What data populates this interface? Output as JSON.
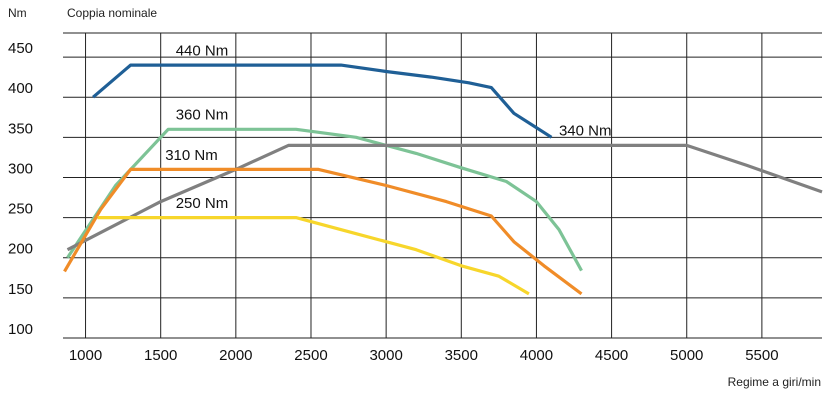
{
  "chart_data": {
    "type": "line",
    "unit_label": "Nm",
    "title": "Coppia nominale",
    "xlabel": "Regime a giri/min",
    "ylabel": "Nm",
    "xlim": [
      850,
      5900
    ],
    "ylim": [
      100,
      480
    ],
    "x_ticks": [
      1000,
      1500,
      2000,
      2500,
      3000,
      3500,
      4000,
      4500,
      5000,
      5500
    ],
    "y_ticks": [
      100,
      150,
      200,
      250,
      300,
      350,
      400,
      450
    ],
    "grid": true,
    "series": [
      {
        "name": "440 Nm",
        "color": "#1f5f96",
        "label_pos": [
          1600,
          452
        ],
        "points": [
          [
            1050,
            400
          ],
          [
            1300,
            440
          ],
          [
            2700,
            440
          ],
          [
            3000,
            432
          ],
          [
            3300,
            425
          ],
          [
            3550,
            418
          ],
          [
            3700,
            412
          ],
          [
            3850,
            380
          ],
          [
            4100,
            350
          ]
        ]
      },
      {
        "name": "360 Nm",
        "color": "#7dc396",
        "label_pos": [
          1600,
          372
        ],
        "points": [
          [
            880,
            200
          ],
          [
            1200,
            290
          ],
          [
            1550,
            360
          ],
          [
            2400,
            360
          ],
          [
            2800,
            350
          ],
          [
            3200,
            330
          ],
          [
            3500,
            312
          ],
          [
            3800,
            295
          ],
          [
            4000,
            270
          ],
          [
            4150,
            235
          ],
          [
            4300,
            184
          ]
        ]
      },
      {
        "name": "340 Nm",
        "color": "#808080",
        "label_pos": [
          4150,
          352
        ],
        "points": [
          [
            880,
            210
          ],
          [
            1500,
            270
          ],
          [
            2000,
            310
          ],
          [
            2350,
            340
          ],
          [
            5000,
            340
          ],
          [
            5400,
            315
          ],
          [
            5900,
            282
          ]
        ]
      },
      {
        "name": "310 Nm",
        "color": "#f08c28",
        "label_pos": [
          1530,
          322
        ],
        "points": [
          [
            860,
            183
          ],
          [
            1100,
            260
          ],
          [
            1300,
            310
          ],
          [
            2550,
            310
          ],
          [
            3000,
            290
          ],
          [
            3400,
            270
          ],
          [
            3700,
            252
          ],
          [
            3850,
            220
          ],
          [
            4050,
            190
          ],
          [
            4300,
            155
          ]
        ]
      },
      {
        "name": "250 Nm",
        "color": "#f7d62b",
        "label_pos": [
          1600,
          262
        ],
        "points": [
          [
            1080,
            250
          ],
          [
            2400,
            250
          ],
          [
            2800,
            230
          ],
          [
            3200,
            210
          ],
          [
            3500,
            190
          ],
          [
            3750,
            177
          ],
          [
            3950,
            155
          ]
        ]
      }
    ]
  }
}
